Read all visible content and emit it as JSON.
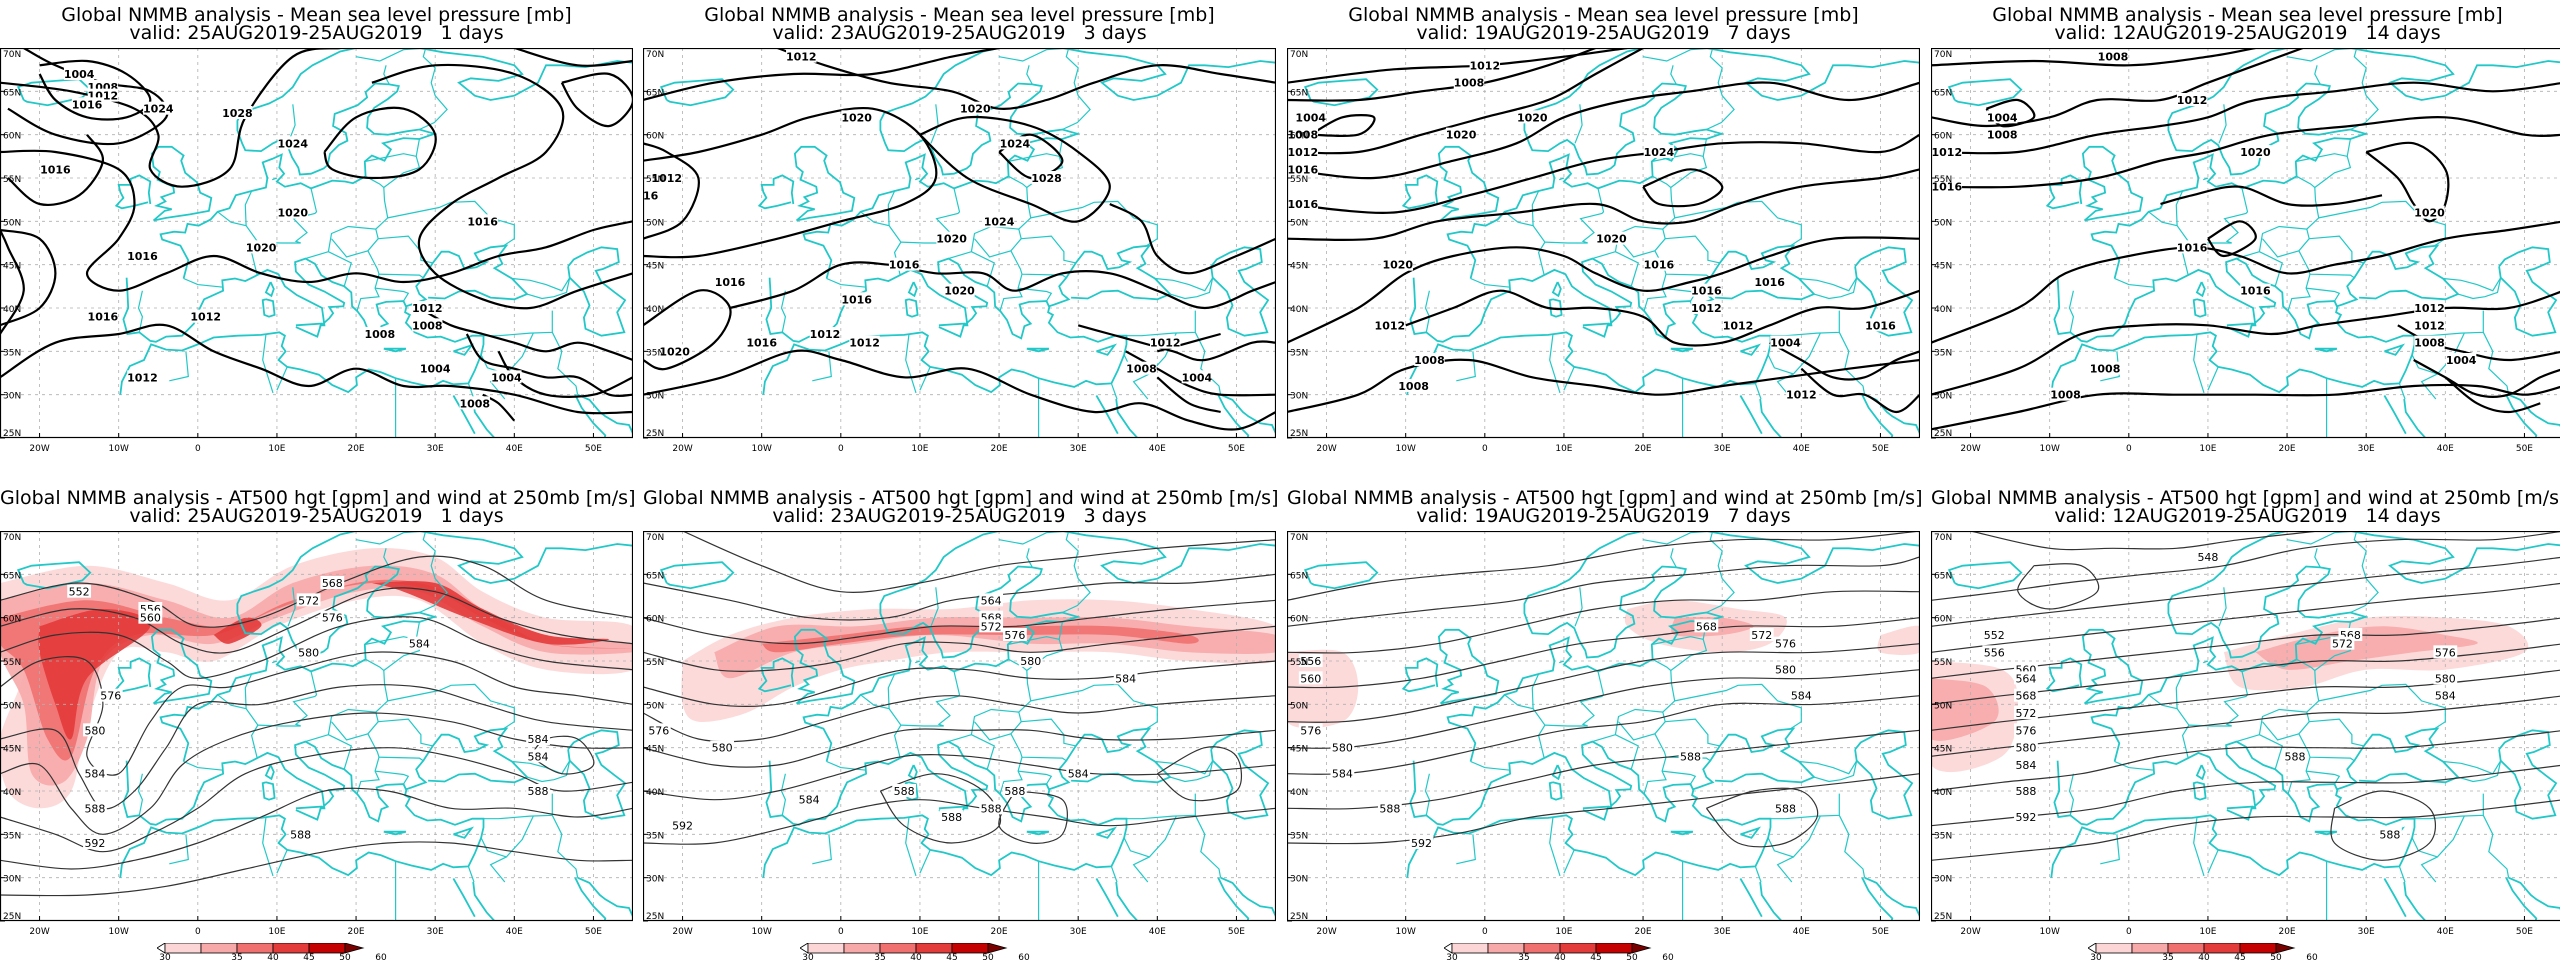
{
  "panels": [
    {
      "row": 0,
      "col": 0,
      "title": "Global NMMB analysis - Mean sea level pressure [mb]",
      "subtitle": "valid: 25AUG2019-25AUG2019   1 days"
    },
    {
      "row": 0,
      "col": 1,
      "title": "Global NMMB analysis - Mean sea level pressure [mb]",
      "subtitle": "valid: 23AUG2019-25AUG2019   3 days"
    },
    {
      "row": 0,
      "col": 2,
      "title": "Global NMMB analysis - Mean sea level pressure [mb]",
      "subtitle": "valid: 19AUG2019-25AUG2019   7 days"
    },
    {
      "row": 0,
      "col": 3,
      "title": "Global NMMB analysis - Mean sea level pressure [mb]",
      "subtitle": "valid: 12AUG2019-25AUG2019   14 days"
    },
    {
      "row": 1,
      "col": 0,
      "title": "Global NMMB analysis - AT500 hgt [gpm] and wind at 250mb [m/s]",
      "subtitle": "valid: 25AUG2019-25AUG2019   1 days"
    },
    {
      "row": 1,
      "col": 1,
      "title": "Global NMMB analysis - AT500 hgt [gpm] and wind at 250mb [m/s]",
      "subtitle": "valid: 23AUG2019-25AUG2019   3 days"
    },
    {
      "row": 1,
      "col": 2,
      "title": "Global NMMB analysis - AT500 hgt [gpm] and wind at 250mb [m/s]",
      "subtitle": "valid: 19AUG2019-25AUG2019   7 days"
    },
    {
      "row": 1,
      "col": 3,
      "title": "Global NMMB analysis - AT500 hgt [gpm] and wind at 250mb [m/s]",
      "subtitle": "valid: 12AUG2019-25AUG2019   14 days"
    }
  ],
  "map": {
    "lon_ticks": [
      "20W",
      "10W",
      "0",
      "10E",
      "20E",
      "30E",
      "40E",
      "50E"
    ],
    "lat_ticks": [
      "70N",
      "65N",
      "60N",
      "55N",
      "50N",
      "45N",
      "40N",
      "35N",
      "30N",
      "25N"
    ],
    "coast_color": "#22c8c8",
    "contour_color": "#000000",
    "grid_color": "#b0b0b0"
  },
  "mslp_labels": [
    [
      "1004",
      "1008",
      "1012",
      "1016",
      "1024",
      "1028",
      "1016",
      "1024",
      "1020",
      "1016",
      "1016",
      "1016",
      "1012",
      "1008",
      "1004",
      "1012",
      "1012",
      "1008",
      "1004",
      "1008",
      "1020"
    ],
    [
      "1012",
      "1020",
      "1020",
      "1024",
      "1028",
      "1012",
      "1016",
      "1024",
      "1020",
      "1016",
      "1016",
      "1016",
      "1020",
      "1012",
      "1008",
      "1004",
      "1016",
      "1012",
      "1012",
      "1020"
    ],
    [
      "1012",
      "1008",
      "1004",
      "1008",
      "1012",
      "1016",
      "1016",
      "1020",
      "1020",
      "1024",
      "1020",
      "1020",
      "1016",
      "1016",
      "1016",
      "1012",
      "1012",
      "1008",
      "1008",
      "1004",
      "1012",
      "1016",
      "1012"
    ],
    [
      "1008",
      "1004",
      "1008",
      "1012",
      "1016",
      "1012",
      "1020",
      "1020",
      "1016",
      "1016",
      "1012",
      "1012",
      "1008",
      "1008",
      "1004",
      "1008"
    ]
  ],
  "z500_labels": [
    [
      "552",
      "556",
      "560",
      "568",
      "572",
      "576",
      "580",
      "584",
      "576",
      "580",
      "584",
      "588",
      "592",
      "584",
      "584",
      "588",
      "588"
    ],
    [
      "564",
      "568",
      "572",
      "576",
      "580",
      "584",
      "576",
      "580",
      "584",
      "588",
      "592",
      "584",
      "588",
      "588",
      "588"
    ],
    [
      "568",
      "572",
      "576",
      "580",
      "584",
      "556",
      "560",
      "576",
      "580",
      "584",
      "588",
      "588",
      "588",
      "592"
    ],
    [
      "548",
      "552",
      "556",
      "560",
      "564",
      "568",
      "572",
      "576",
      "580",
      "584",
      "588",
      "592",
      "568",
      "572",
      "576",
      "580",
      "584",
      "588",
      "588"
    ]
  ],
  "legend": {
    "values": [
      "30",
      "35",
      "40",
      "45",
      "50",
      "60"
    ],
    "colors": [
      "#ffffff",
      "#fcd6d6",
      "#f7a8a8",
      "#f07070",
      "#e33a3a",
      "#c40000",
      "#7a0000"
    ]
  }
}
